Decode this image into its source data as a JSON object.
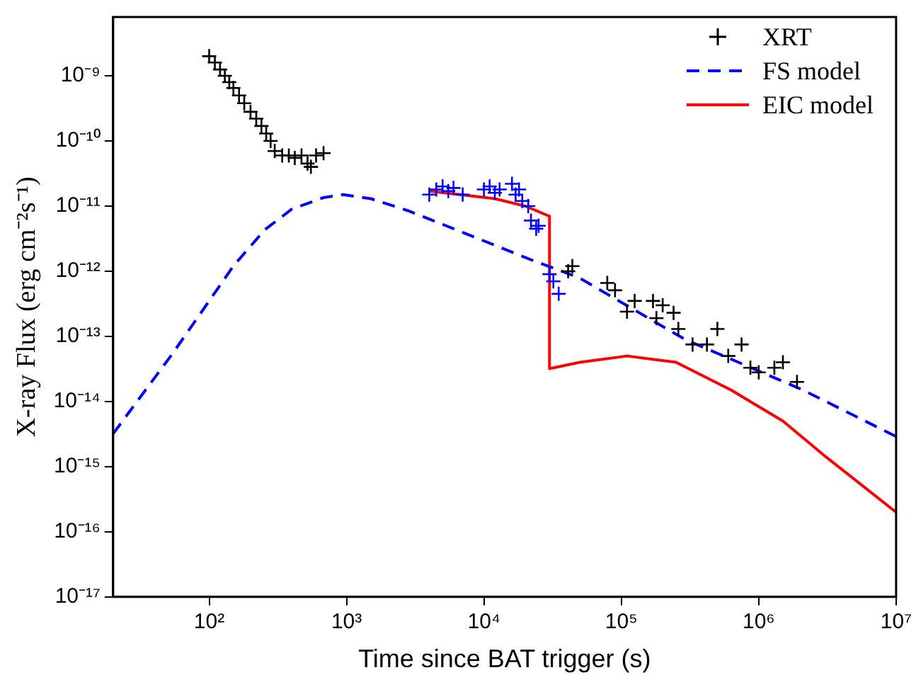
{
  "chart_data": {
    "type": "scatter",
    "xlabel": "Time since BAT trigger (s)",
    "ylabel": "X-ray Flux (erg cm⁻²s⁻¹)",
    "log": "xy",
    "xlim": [
      20,
      10000000
    ],
    "ylim": [
      1e-17,
      8e-09
    ],
    "xticks": [
      {
        "value": 100,
        "label": "10²"
      },
      {
        "value": 1000,
        "label": "10³"
      },
      {
        "value": 10000,
        "label": "10⁴"
      },
      {
        "value": 100000,
        "label": "10⁵"
      },
      {
        "value": 1000000,
        "label": "10⁶"
      },
      {
        "value": 10000000,
        "label": "10⁷"
      }
    ],
    "yticks": [
      {
        "value": 1e-09,
        "label": "10⁻⁹"
      },
      {
        "value": 1e-10,
        "label": "10⁻¹⁰"
      },
      {
        "value": 1e-11,
        "label": "10⁻¹¹"
      },
      {
        "value": 1e-12,
        "label": "10⁻¹²"
      },
      {
        "value": 1e-13,
        "label": "10⁻¹³"
      },
      {
        "value": 1e-14,
        "label": "10⁻¹⁴"
      },
      {
        "value": 1e-15,
        "label": "10⁻¹⁵"
      },
      {
        "value": 1e-16,
        "label": "10⁻¹⁶"
      },
      {
        "value": 1e-17,
        "label": "10⁻¹⁷"
      }
    ],
    "grid": false,
    "legend": "top right",
    "marker": "cross",
    "series": [
      {
        "name": "XRT",
        "color": "#000000",
        "x": [
          100,
          110,
          120,
          130,
          140,
          150,
          165,
          180,
          200,
          220,
          240,
          260,
          280,
          300,
          340,
          380,
          420,
          470,
          520,
          550,
          600,
          680,
          41000,
          44000,
          79000,
          90000,
          110000,
          125000,
          170000,
          180000,
          200000,
          240000,
          260000,
          330000,
          420000,
          500000,
          600000,
          750000,
          870000,
          1000000,
          1300000,
          1500000,
          1900000
        ],
        "values": [
          2e-09,
          1.6e-09,
          1.25e-09,
          1e-09,
          8e-10,
          6.5e-10,
          5e-10,
          3.8e-10,
          2.8e-10,
          2.2e-10,
          1.7e-10,
          1.3e-10,
          1e-10,
          7e-11,
          6e-11,
          6e-11,
          5.5e-11,
          6e-11,
          4.5e-11,
          4e-11,
          6e-11,
          6.5e-11,
          1e-12,
          1.2e-12,
          6.6e-13,
          5.1e-13,
          2.4e-13,
          3.5e-13,
          3.5e-13,
          1.9e-13,
          3e-13,
          2.3e-13,
          1.3e-13,
          7.5e-14,
          7.5e-14,
          1.3e-13,
          5e-14,
          7.5e-14,
          3.3e-14,
          2.8e-14,
          3.3e-14,
          4e-14,
          2e-14
        ]
      },
      {
        "color": "#0000ff",
        "x": [
          4000,
          4500,
          5000,
          5500,
          6000,
          7000,
          10000,
          11000,
          12000,
          13000,
          16000,
          17000,
          18000,
          19000,
          21000,
          22000,
          24000,
          25000,
          30000,
          32000,
          35000
        ],
        "values": [
          1.5e-11,
          1.8e-11,
          2e-11,
          1.7e-11,
          1.9e-11,
          1.5e-11,
          1.8e-11,
          2e-11,
          1.6e-11,
          1.8e-11,
          2.2e-11,
          1.5e-11,
          1.8e-11,
          1.2e-11,
          1e-11,
          6e-12,
          4.5e-12,
          5e-12,
          9e-13,
          7e-13,
          4.5e-13
        ]
      },
      {
        "name": "FS model",
        "type": "line",
        "marker": "none",
        "line_style": "dashed",
        "color": "#0000ff",
        "x": [
          20,
          54,
          100,
          150,
          253,
          400,
          680,
          940,
          1500,
          2800,
          6000,
          22000,
          49000,
          290000,
          2100000,
          10000000
        ],
        "values": [
          3.2e-15,
          5.4e-14,
          3.5e-13,
          1.2e-12,
          4.3e-12,
          9e-12,
          1.35e-11,
          1.5e-11,
          1.3e-11,
          8.5e-12,
          4.5e-12,
          1.5e-12,
          8e-13,
          9e-14,
          1.5e-14,
          2.9e-15
        ]
      },
      {
        "name": "EIC model",
        "type": "line",
        "marker": "none",
        "line_style": "solid",
        "color": "#ff0000",
        "x": [
          4000,
          12000,
          20000,
          30000,
          30000,
          50000,
          110000,
          250000,
          630000,
          1500000,
          3100000,
          10000000
        ],
        "values": [
          1.7e-11,
          1.3e-11,
          1e-11,
          7e-12,
          3.2e-14,
          4e-14,
          5e-14,
          4e-14,
          1.5e-14,
          5e-15,
          1.4e-15,
          2e-16
        ]
      }
    ]
  }
}
